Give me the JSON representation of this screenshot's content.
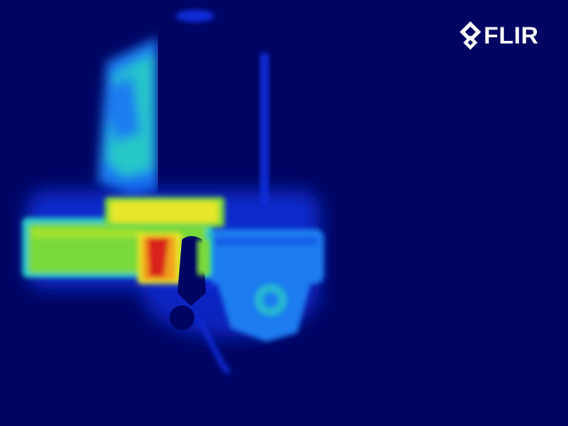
{
  "image": {
    "palette": "rainbow-thermal",
    "colors": {
      "background": "#000563",
      "cold": "#0a2bd6",
      "cool": "#1e7bf0",
      "mild": "#27c7c7",
      "warm": "#79d93a",
      "warmer": "#e6e62a",
      "hot": "#f2a01a",
      "hottest": "#d9221a"
    }
  },
  "watermark": {
    "text": "FLIR",
    "icon": "flir-diamond-logo-icon",
    "color": "#ffffff"
  }
}
